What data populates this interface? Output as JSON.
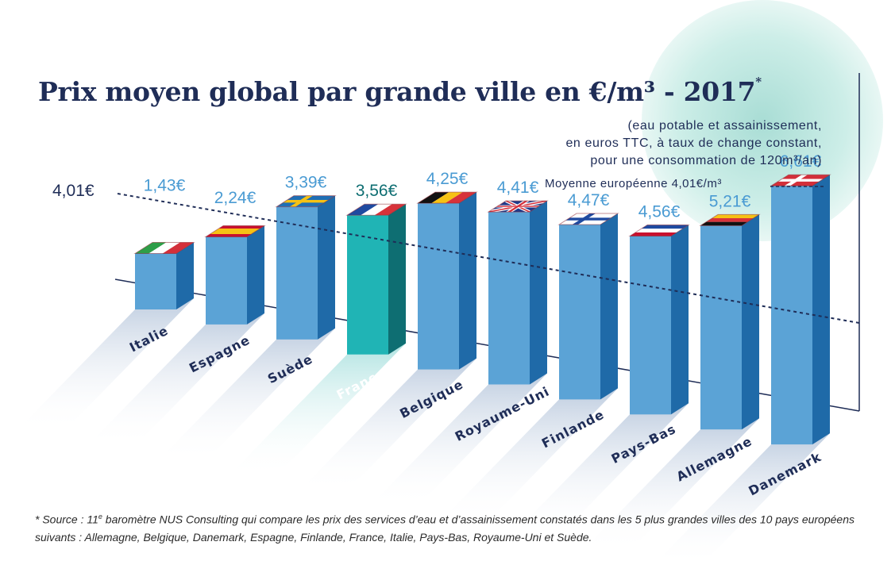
{
  "chart_data": {
    "type": "bar",
    "title": "Prix moyen global par grande ville en €/m³ - 2017",
    "title_marker": "*",
    "subtitle_lines": [
      "(eau potable et assainissement,",
      "en euros TTC, à taux de change constant,",
      "pour une consommation de 120m³/an)"
    ],
    "average_legend": "Moyenne européenne 4,01€/m³",
    "average_value": 4.01,
    "average_label": "4,01€",
    "unit": "€/m³",
    "categories": [
      "Italie",
      "Espagne",
      "Suède",
      "France",
      "Belgique",
      "Royaume-Uni",
      "Finlande",
      "Pays-Bas",
      "Allemagne",
      "Danemark"
    ],
    "values": [
      1.43,
      2.24,
      3.39,
      3.56,
      4.25,
      4.41,
      4.47,
      4.56,
      5.21,
      6.61
    ],
    "value_labels": [
      "1,43€",
      "2,24€",
      "3,39€",
      "3,56€",
      "4,25€",
      "4,41€",
      "4,47€",
      "4,56€",
      "5,21€",
      "6,61€"
    ],
    "highlight": "France",
    "ylim": [
      0,
      7
    ],
    "xlabel": "",
    "ylabel": ""
  },
  "colors": {
    "navy": "#1f2d57",
    "bar_front": "#5ba3d6",
    "bar_side": "#1f6aa8",
    "bar_highlight_front": "#20b4b5",
    "bar_highlight_side": "#0e6e72",
    "value_label": "#4a9bd3",
    "value_label_highlight": "#0e6e72",
    "circle": "#c9ece6"
  },
  "footnote": {
    "marker": "*",
    "prefix": " Source : 11",
    "sup": "e",
    "text": " baromètre NUS Consulting qui compare les prix des services d’eau et d’assainissement constatés dans les 5 plus grandes villes des 10 pays européens suivants : Allemagne, Belgique, Danemark, Espagne, Finlande, France, Italie, Pays-Bas, Royaume-Uni et Suède."
  }
}
